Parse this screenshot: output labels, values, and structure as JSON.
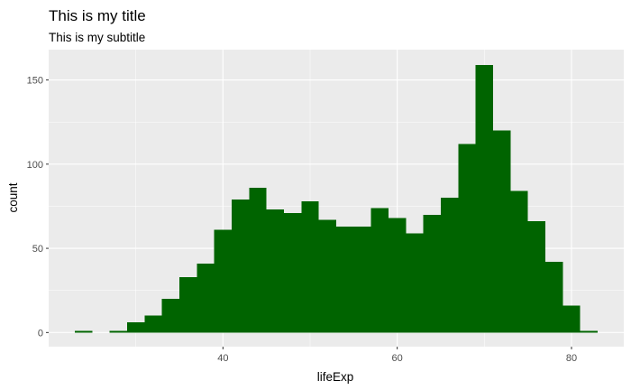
{
  "chart_data": {
    "type": "bar",
    "title": "This is my title",
    "subtitle": "This is my subtitle",
    "xlabel": "lifeExp",
    "ylabel": "count",
    "bin_width": 2,
    "bins": [
      {
        "x0": 23,
        "x1": 25,
        "count": 1
      },
      {
        "x0": 25,
        "x1": 27,
        "count": 0
      },
      {
        "x0": 27,
        "x1": 29,
        "count": 1
      },
      {
        "x0": 29,
        "x1": 31,
        "count": 6
      },
      {
        "x0": 31,
        "x1": 33,
        "count": 10
      },
      {
        "x0": 33,
        "x1": 35,
        "count": 20
      },
      {
        "x0": 35,
        "x1": 37,
        "count": 33
      },
      {
        "x0": 37,
        "x1": 39,
        "count": 41
      },
      {
        "x0": 39,
        "x1": 41,
        "count": 61
      },
      {
        "x0": 41,
        "x1": 43,
        "count": 79
      },
      {
        "x0": 43,
        "x1": 45,
        "count": 86
      },
      {
        "x0": 45,
        "x1": 47,
        "count": 73
      },
      {
        "x0": 47,
        "x1": 49,
        "count": 71
      },
      {
        "x0": 49,
        "x1": 51,
        "count": 78
      },
      {
        "x0": 51,
        "x1": 53,
        "count": 67
      },
      {
        "x0": 53,
        "x1": 55,
        "count": 63
      },
      {
        "x0": 55,
        "x1": 57,
        "count": 63
      },
      {
        "x0": 57,
        "x1": 59,
        "count": 74
      },
      {
        "x0": 59,
        "x1": 61,
        "count": 68
      },
      {
        "x0": 61,
        "x1": 63,
        "count": 59
      },
      {
        "x0": 63,
        "x1": 65,
        "count": 70
      },
      {
        "x0": 65,
        "x1": 67,
        "count": 80
      },
      {
        "x0": 67,
        "x1": 69,
        "count": 112
      },
      {
        "x0": 69,
        "x1": 71,
        "count": 159
      },
      {
        "x0": 71,
        "x1": 73,
        "count": 120
      },
      {
        "x0": 73,
        "x1": 75,
        "count": 84
      },
      {
        "x0": 75,
        "x1": 77,
        "count": 66
      },
      {
        "x0": 77,
        "x1": 79,
        "count": 42
      },
      {
        "x0": 79,
        "x1": 81,
        "count": 16
      },
      {
        "x0": 81,
        "x1": 83,
        "count": 1
      }
    ],
    "xlim": [
      20,
      86
    ],
    "ylim": [
      -8.4,
      168
    ],
    "x_ticks": [
      40,
      60,
      80
    ],
    "y_ticks": [
      0,
      50,
      100,
      150
    ],
    "grid": true,
    "legend": "none",
    "colors": {
      "bar_fill": "#006400",
      "panel_background": "#ebebeb",
      "grid_major": "#ffffff",
      "tick_label": "#4d4d4d"
    }
  }
}
